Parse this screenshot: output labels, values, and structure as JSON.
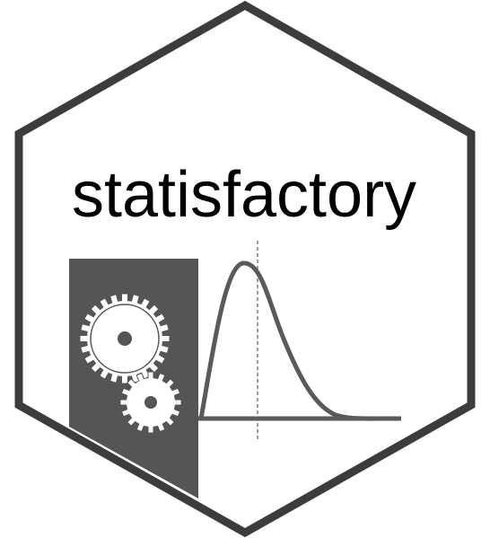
{
  "logo": {
    "title": "statisfactory",
    "colors": {
      "background": "#ffffff",
      "hex_border": "#3c3c3c",
      "machine": "#555555",
      "gear_fill": "#ffffff",
      "gear_edge": "#555555",
      "curve": "#5a5a5a",
      "text": "#000000"
    },
    "icons": [
      "hexagon-border",
      "factory-machine",
      "gear-icon",
      "gear-icon",
      "distribution-curve"
    ]
  }
}
